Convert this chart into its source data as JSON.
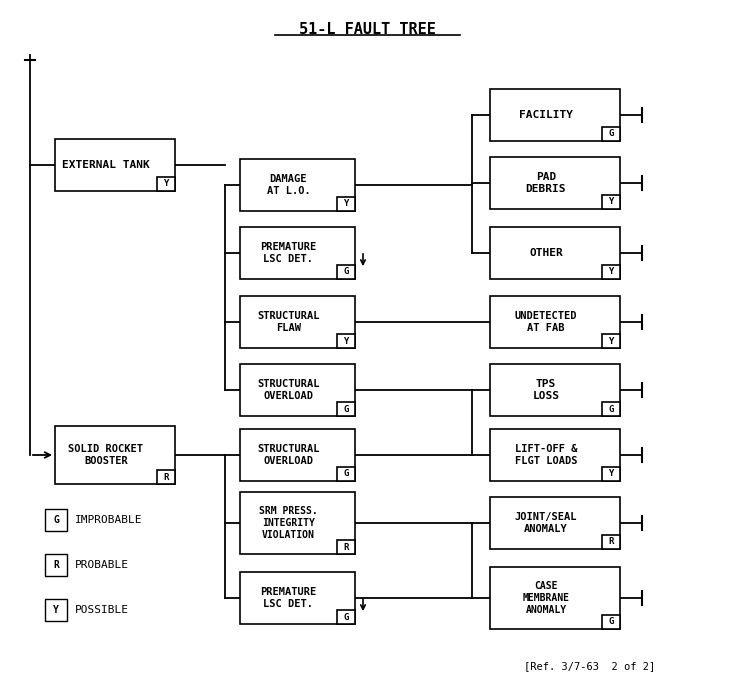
{
  "title": "51-L FAULT TREE",
  "background_color": "#ffffff",
  "ref_text": "[Ref. 3/7-63  2 of 2]",
  "legend": [
    {
      "symbol": "G",
      "meaning": "IMPROBABLE"
    },
    {
      "symbol": "R",
      "meaning": "PROBABLE"
    },
    {
      "symbol": "Y",
      "meaning": "POSSIBLE"
    }
  ]
}
